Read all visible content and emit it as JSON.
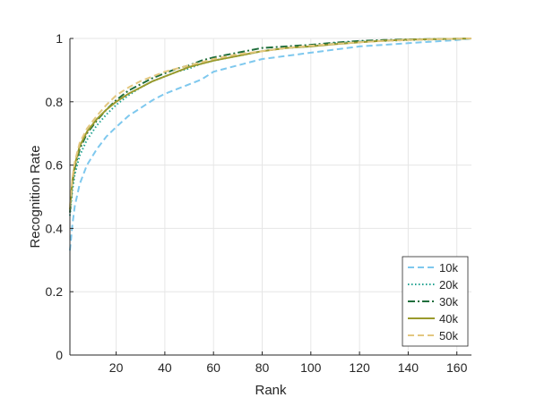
{
  "chart_data": {
    "type": "line",
    "title": "",
    "xlabel": "Rank",
    "ylabel": "Recognition Rate",
    "xlim": [
      1,
      166
    ],
    "ylim": [
      0,
      1
    ],
    "xticks": [
      20,
      40,
      60,
      80,
      100,
      120,
      140,
      160
    ],
    "yticks": [
      0,
      0.2,
      0.4,
      0.6,
      0.8,
      1
    ],
    "ytick_labels": [
      "0",
      "0.2",
      "0.4",
      "0.6",
      "0.8",
      "1"
    ],
    "grid": true,
    "legend_position": "bottom-right",
    "x": [
      1,
      2,
      3,
      5,
      8,
      12,
      16,
      20,
      25,
      30,
      35,
      40,
      45,
      50,
      55,
      60,
      70,
      80,
      90,
      100,
      110,
      120,
      130,
      140,
      150,
      160,
      166
    ],
    "series": [
      {
        "name": "10k",
        "color": "#7ec8ee",
        "dash": "dashed",
        "values": [
          0.33,
          0.41,
          0.47,
          0.54,
          0.6,
          0.65,
          0.69,
          0.72,
          0.755,
          0.78,
          0.805,
          0.825,
          0.84,
          0.855,
          0.87,
          0.895,
          0.915,
          0.935,
          0.945,
          0.955,
          0.965,
          0.975,
          0.98,
          0.985,
          0.99,
          0.995,
          1.0
        ]
      },
      {
        "name": "20k",
        "color": "#23a392",
        "dash": "dotted",
        "values": [
          0.44,
          0.52,
          0.57,
          0.63,
          0.68,
          0.725,
          0.76,
          0.79,
          0.82,
          0.845,
          0.865,
          0.88,
          0.895,
          0.905,
          0.92,
          0.93,
          0.945,
          0.96,
          0.97,
          0.975,
          0.985,
          0.99,
          0.992,
          0.995,
          0.997,
          0.999,
          1.0
        ]
      },
      {
        "name": "30k",
        "color": "#1f6e3c",
        "dash": "dashdot",
        "values": [
          0.45,
          0.54,
          0.59,
          0.65,
          0.7,
          0.74,
          0.775,
          0.805,
          0.835,
          0.855,
          0.875,
          0.89,
          0.905,
          0.915,
          0.93,
          0.94,
          0.955,
          0.97,
          0.975,
          0.98,
          0.987,
          0.992,
          0.995,
          0.997,
          0.998,
          0.999,
          1.0
        ]
      },
      {
        "name": "40k",
        "color": "#9a9a2c",
        "dash": "solid",
        "values": [
          0.46,
          0.55,
          0.6,
          0.66,
          0.705,
          0.745,
          0.775,
          0.8,
          0.825,
          0.845,
          0.865,
          0.88,
          0.895,
          0.91,
          0.92,
          0.93,
          0.945,
          0.96,
          0.97,
          0.975,
          0.982,
          0.988,
          0.993,
          0.996,
          0.998,
          0.999,
          1.0
        ]
      },
      {
        "name": "50k",
        "color": "#e3c77f",
        "dash": "dashed",
        "values": [
          0.47,
          0.56,
          0.61,
          0.67,
          0.715,
          0.755,
          0.79,
          0.82,
          0.845,
          0.865,
          0.88,
          0.895,
          0.905,
          0.915,
          0.925,
          0.935,
          0.95,
          0.96,
          0.97,
          0.977,
          0.983,
          0.988,
          0.992,
          0.995,
          0.997,
          0.999,
          1.0
        ]
      }
    ]
  }
}
